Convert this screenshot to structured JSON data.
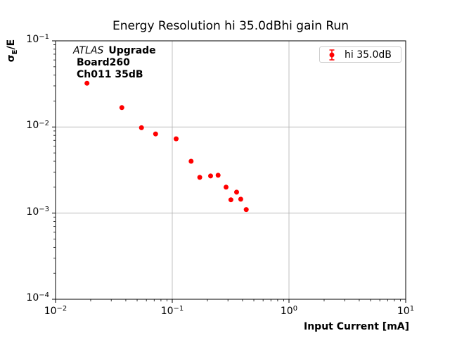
{
  "figure": {
    "title": "Energy Resolution hi 35.0dBhi gain Run",
    "xlabel": "Input Current [mA]",
    "ylabel_sigma": "σ",
    "ylabel_sub": "E",
    "ylabel_rest": "/E"
  },
  "annotation": {
    "experiment": "ATLAS",
    "line1_bold": "Upgrade",
    "line2": "Board260",
    "line3": "Ch011 35dB"
  },
  "legend": {
    "label": "hi 35.0dB"
  },
  "colors": {
    "marker": "#ff0000",
    "grid": "#b0b0b0",
    "spine": "#000000",
    "legend_border": "#cccccc"
  },
  "chart_data": {
    "type": "scatter",
    "title": "Energy Resolution hi 35.0dBhi gain Run",
    "xlabel": "Input Current [mA]",
    "ylabel": "sigma_E/E",
    "xscale": "log",
    "yscale": "log",
    "xlim": [
      0.01,
      10
    ],
    "ylim": [
      0.0001,
      0.1
    ],
    "grid": true,
    "legend_position": "upper right",
    "x_tick_exponents": [
      -2,
      -1,
      0,
      1
    ],
    "y_tick_exponents": [
      -1,
      -2,
      -3,
      -4
    ],
    "series": [
      {
        "name": "hi 35.0dB",
        "color": "#ff0000",
        "marker": "circle-with-errorbar",
        "x": [
          0.0186,
          0.037,
          0.0545,
          0.072,
          0.108,
          0.145,
          0.172,
          0.213,
          0.247,
          0.289,
          0.318,
          0.356,
          0.386,
          0.43
        ],
        "y": [
          0.0322,
          0.0168,
          0.0098,
          0.0083,
          0.0073,
          0.004,
          0.0026,
          0.0027,
          0.00275,
          0.002,
          0.00143,
          0.00175,
          0.00145,
          0.0011
        ]
      }
    ]
  }
}
